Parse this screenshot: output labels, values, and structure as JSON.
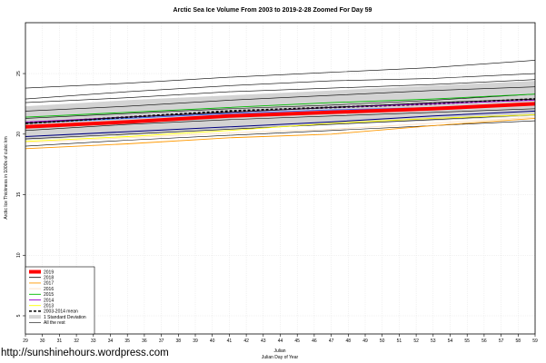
{
  "chart_data": {
    "type": "line",
    "title": "Arctic Sea Ice Volume From 2003 to 2019-2-28 Zoomed For Day 59",
    "xlabel": "Julian",
    "xlabel2": "Julian Day of Year",
    "ylabel": "Arctic Ice Thickness in 1000s of cubic km",
    "xlim": [
      29,
      59
    ],
    "ylim": [
      3.5,
      29.2
    ],
    "xticks": [
      "29",
      "30",
      "31",
      "32",
      "33",
      "34",
      "35",
      "36",
      "37",
      "38",
      "39",
      "40",
      "41",
      "42",
      "43",
      "44",
      "45",
      "46",
      "47",
      "48",
      "49",
      "50",
      "51",
      "52",
      "53",
      "54",
      "55",
      "56",
      "57",
      "58",
      "59"
    ],
    "yticks": [
      "5",
      "10",
      "15",
      "20",
      "25"
    ],
    "grid": true,
    "legend_position": "bottom-left",
    "series": [
      {
        "name": "2019",
        "color": "#ff0000",
        "width": 4,
        "dash": "",
        "x": [
          29,
          35,
          41,
          47,
          53,
          59
        ],
        "values": [
          20.6,
          21.0,
          21.5,
          21.8,
          22.1,
          22.5
        ]
      },
      {
        "name": "2018",
        "color": "#000000",
        "width": 0.8,
        "dash": "",
        "x": [
          29,
          35,
          41,
          47,
          53,
          59
        ],
        "values": [
          20.9,
          21.4,
          21.8,
          22.2,
          22.6,
          22.9
        ]
      },
      {
        "name": "2017",
        "color": "#ff9900",
        "width": 0.9,
        "dash": "",
        "x": [
          29,
          35,
          41,
          47,
          53,
          59
        ],
        "values": [
          18.8,
          19.2,
          19.7,
          20.0,
          20.7,
          21.3
        ]
      },
      {
        "name": "2016",
        "color": "#ffe0c0",
        "width": 0.9,
        "dash": "",
        "x": [
          29,
          35,
          41,
          47,
          53,
          59
        ],
        "values": [
          19.3,
          19.7,
          20.1,
          20.4,
          20.9,
          21.4
        ]
      },
      {
        "name": "2015",
        "color": "#00bb00",
        "width": 0.9,
        "dash": "",
        "x": [
          29,
          35,
          41,
          47,
          53,
          59
        ],
        "values": [
          21.4,
          21.8,
          22.2,
          22.6,
          22.9,
          23.3
        ]
      },
      {
        "name": "2014",
        "color": "#9900cc",
        "width": 0.9,
        "dash": "",
        "x": [
          29,
          35,
          41,
          47,
          53,
          59
        ],
        "values": [
          21.0,
          21.4,
          21.8,
          22.2,
          22.5,
          22.8
        ]
      },
      {
        "name": "2013",
        "color": "#ffff00",
        "width": 0.9,
        "dash": "",
        "x": [
          29,
          35,
          41,
          47,
          53,
          59
        ],
        "values": [
          19.4,
          19.8,
          20.3,
          20.9,
          21.3,
          21.6
        ]
      },
      {
        "name": "2003-2014 mean",
        "color": "#000000",
        "width": 2,
        "dash": "3,2",
        "x": [
          29,
          35,
          41,
          47,
          53,
          59
        ],
        "values": [
          20.9,
          21.4,
          21.9,
          22.2,
          22.5,
          22.9
        ]
      }
    ],
    "std_band": {
      "name": "1 Standard Deviation",
      "color": "#d3d3d3",
      "x": [
        29,
        35,
        41,
        47,
        53,
        59
      ],
      "upper": [
        22.3,
        22.8,
        23.2,
        23.6,
        24.0,
        24.4
      ],
      "lower": [
        19.5,
        19.9,
        20.4,
        20.8,
        21.1,
        21.5
      ]
    },
    "other_years": {
      "name": "All the rest",
      "color": "#000000",
      "series": [
        {
          "x": [
            29,
            35,
            41,
            47,
            53,
            59
          ],
          "values": [
            23.8,
            24.2,
            24.7,
            25.1,
            25.5,
            26.1
          ]
        },
        {
          "x": [
            29,
            35,
            41,
            47,
            53,
            59
          ],
          "values": [
            22.9,
            23.5,
            24.0,
            24.4,
            24.6,
            25.0
          ]
        },
        {
          "x": [
            29,
            35,
            41,
            47,
            53,
            59
          ],
          "values": [
            22.6,
            23.0,
            23.5,
            23.8,
            24.1,
            24.5
          ]
        },
        {
          "x": [
            29,
            35,
            41,
            47,
            53,
            59
          ],
          "values": [
            21.9,
            22.3,
            22.8,
            23.2,
            23.6,
            23.9
          ]
        },
        {
          "x": [
            29,
            35,
            41,
            47,
            53,
            59
          ],
          "values": [
            21.3,
            21.7,
            22.1,
            22.4,
            22.8,
            23.3
          ]
        },
        {
          "x": [
            29,
            35,
            41,
            47,
            53,
            59
          ],
          "values": [
            20.3,
            20.8,
            21.2,
            21.5,
            21.8,
            22.1
          ]
        },
        {
          "x": [
            29,
            35,
            41,
            47,
            53,
            59
          ],
          "values": [
            19.6,
            20.0,
            20.4,
            20.8,
            21.2,
            21.6
          ]
        },
        {
          "x": [
            29,
            35,
            41,
            47,
            53,
            59
          ],
          "values": [
            19.0,
            19.5,
            19.9,
            20.3,
            20.7,
            21.1
          ]
        }
      ]
    },
    "dark_blue_line": {
      "color": "#000080",
      "x": [
        29,
        35,
        41,
        47,
        53,
        59
      ],
      "values": [
        19.8,
        20.2,
        20.6,
        21.0,
        21.5,
        21.9
      ]
    },
    "blue_line": {
      "color": "#3366ff",
      "x": [
        29,
        35,
        41,
        47,
        53,
        59
      ],
      "values": [
        20.9,
        21.3,
        21.7,
        22.0,
        22.2,
        22.4
      ]
    }
  },
  "footer": {
    "url_text": "http://sunshinehours.wordpress.com"
  }
}
